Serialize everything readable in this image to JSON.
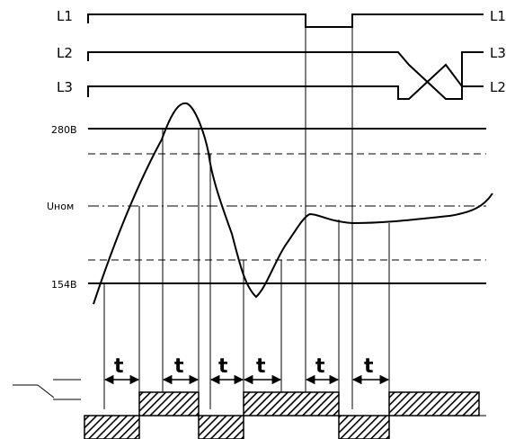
{
  "phase_labels": {
    "l1_left": "L1",
    "l1_right": "L1",
    "l2_left": "L2",
    "l2_right": "L3",
    "l3_left": "L3",
    "l3_right": "L2"
  },
  "levels": {
    "upper": "280В",
    "nominal": "Uном",
    "lower": "154В"
  },
  "delay_label": "t",
  "colors": {
    "line": "#000000",
    "hatch": "#000000",
    "background": "#ffffff"
  }
}
